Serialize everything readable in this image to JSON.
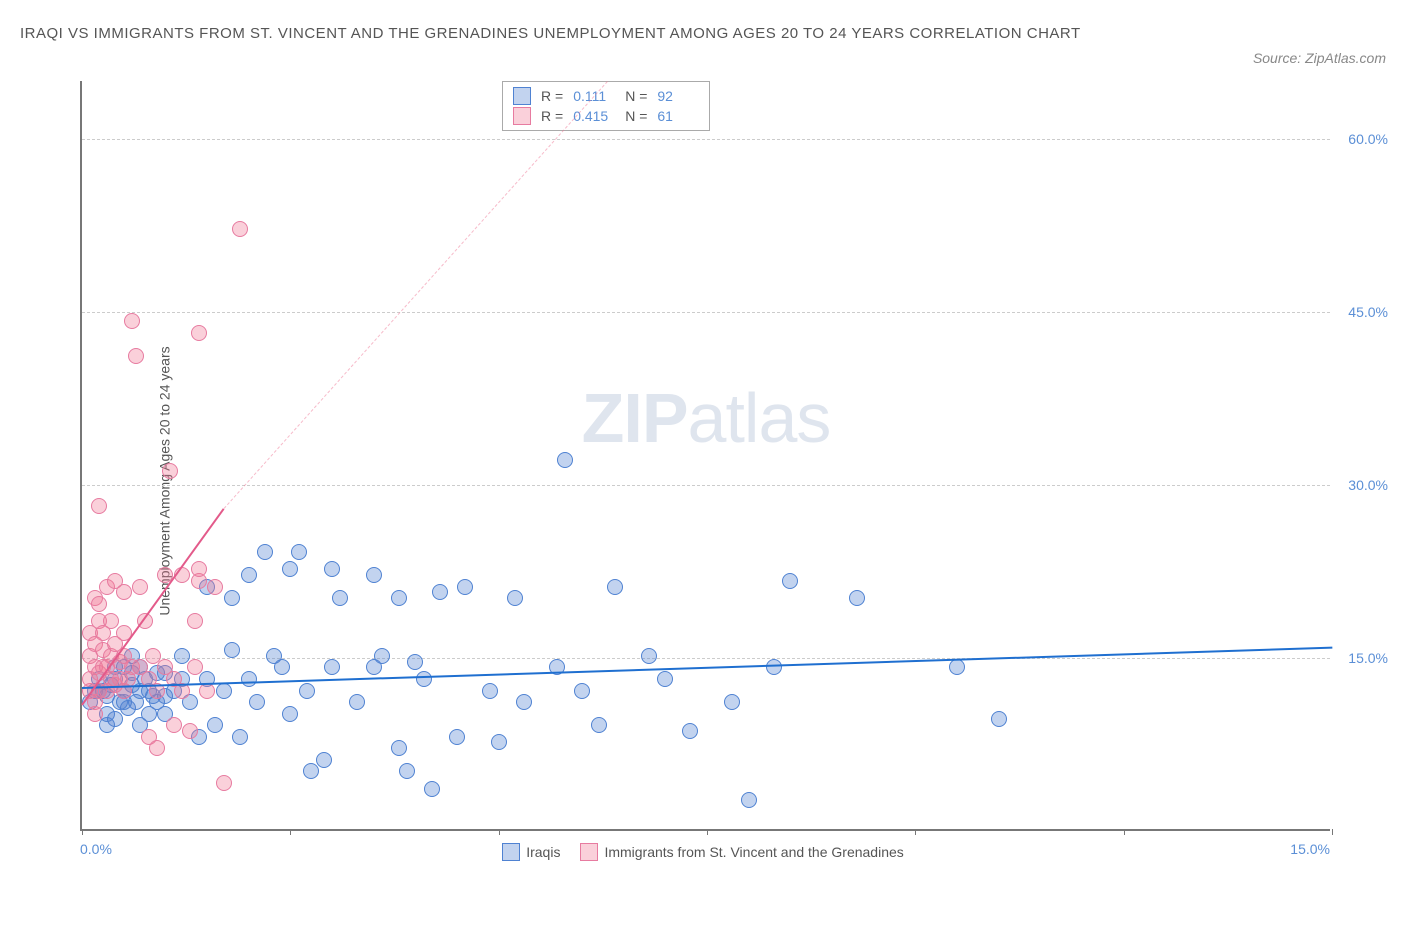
{
  "title": "IRAQI VS IMMIGRANTS FROM ST. VINCENT AND THE GRENADINES UNEMPLOYMENT AMONG AGES 20 TO 24 YEARS CORRELATION CHART",
  "source": "Source: ZipAtlas.com",
  "y_axis_label": "Unemployment Among Ages 20 to 24 years",
  "watermark": {
    "bold": "ZIP",
    "light": "atlas"
  },
  "chart": {
    "type": "scatter",
    "x_min": 0,
    "x_max": 15,
    "y_min": 0,
    "y_max": 65,
    "x_tick_left": "0.0%",
    "x_tick_right": "15.0%",
    "x_tick_marks": [
      0,
      2.5,
      5,
      7.5,
      10,
      12.5,
      15
    ],
    "y_ticks": [
      15,
      30,
      45,
      60
    ],
    "y_tick_labels": [
      "15.0%",
      "30.0%",
      "45.0%",
      "60.0%"
    ],
    "grid_color": "#cccccc",
    "axis_color": "#777777",
    "marker_radius": 8,
    "marker_opacity": 0.5,
    "series": [
      {
        "name": "Iraqis",
        "color_fill": "rgba(80,130,210,0.35)",
        "color_stroke": "#4f82d2",
        "trend_color": "#1f6fd0",
        "trend_dash_color": "rgba(80,130,210,0.5)",
        "R": "0.111",
        "N": "92",
        "trend": {
          "x1": 0,
          "y1": 12.5,
          "x2": 15,
          "y2": 16
        },
        "points": [
          [
            0.1,
            11
          ],
          [
            0.2,
            12
          ],
          [
            0.2,
            13
          ],
          [
            0.3,
            10
          ],
          [
            0.3,
            11.5
          ],
          [
            0.35,
            12.5
          ],
          [
            0.4,
            9.5
          ],
          [
            0.4,
            13
          ],
          [
            0.4,
            14
          ],
          [
            0.5,
            11
          ],
          [
            0.5,
            12
          ],
          [
            0.55,
            10.5
          ],
          [
            0.6,
            12.5
          ],
          [
            0.6,
            13.5
          ],
          [
            0.65,
            11
          ],
          [
            0.7,
            9
          ],
          [
            0.7,
            12
          ],
          [
            0.75,
            13
          ],
          [
            0.8,
            10
          ],
          [
            0.8,
            12
          ],
          [
            0.85,
            11.5
          ],
          [
            0.9,
            13.5
          ],
          [
            1.0,
            10
          ],
          [
            1.0,
            11.5
          ],
          [
            1.1,
            12
          ],
          [
            1.2,
            13
          ],
          [
            1.2,
            15
          ],
          [
            1.3,
            11
          ],
          [
            1.4,
            8
          ],
          [
            1.5,
            13
          ],
          [
            1.5,
            21
          ],
          [
            1.6,
            9
          ],
          [
            1.7,
            12
          ],
          [
            1.8,
            15.5
          ],
          [
            1.9,
            8
          ],
          [
            2.0,
            13
          ],
          [
            2.0,
            22
          ],
          [
            2.1,
            11
          ],
          [
            2.2,
            24
          ],
          [
            2.3,
            15
          ],
          [
            2.4,
            14
          ],
          [
            2.5,
            10
          ],
          [
            2.5,
            22.5
          ],
          [
            2.6,
            24
          ],
          [
            2.7,
            12
          ],
          [
            2.75,
            5
          ],
          [
            3.0,
            14
          ],
          [
            3.0,
            22.5
          ],
          [
            3.1,
            20
          ],
          [
            3.3,
            11
          ],
          [
            3.5,
            22
          ],
          [
            3.5,
            14
          ],
          [
            3.6,
            15
          ],
          [
            3.8,
            20
          ],
          [
            3.8,
            7
          ],
          [
            3.9,
            5
          ],
          [
            4.0,
            14.5
          ],
          [
            4.1,
            13
          ],
          [
            4.3,
            20.5
          ],
          [
            4.5,
            8
          ],
          [
            4.6,
            21
          ],
          [
            4.9,
            12
          ],
          [
            5.0,
            7.5
          ],
          [
            5.2,
            20
          ],
          [
            5.3,
            11
          ],
          [
            5.7,
            14
          ],
          [
            5.8,
            32
          ],
          [
            6.0,
            12
          ],
          [
            6.2,
            9
          ],
          [
            6.4,
            21
          ],
          [
            6.8,
            15
          ],
          [
            7.0,
            13
          ],
          [
            7.3,
            8.5
          ],
          [
            7.8,
            11
          ],
          [
            8.0,
            2.5
          ],
          [
            8.3,
            14
          ],
          [
            8.5,
            21.5
          ],
          [
            9.3,
            20
          ],
          [
            10.5,
            14
          ],
          [
            11.0,
            9.5
          ],
          [
            4.2,
            3.5
          ],
          [
            2.9,
            6
          ],
          [
            1.8,
            20
          ],
          [
            1.0,
            13.5
          ],
          [
            0.9,
            11
          ],
          [
            0.25,
            12
          ],
          [
            0.5,
            14
          ],
          [
            0.3,
            9
          ],
          [
            0.6,
            15
          ],
          [
            0.45,
            11
          ],
          [
            0.7,
            14
          ],
          [
            0.15,
            12
          ]
        ]
      },
      {
        "name": "Immigrants from St. Vincent and the Grenadines",
        "color_fill": "rgba(240,120,150,0.35)",
        "color_stroke": "#e77ba0",
        "trend_color": "#e35a8a",
        "trend_dash_color": "rgba(240,120,150,0.5)",
        "R": "0.415",
        "N": "61",
        "trend": {
          "x1": 0,
          "y1": 11,
          "x2": 1.7,
          "y2": 28
        },
        "trend_dash": {
          "x1": 1.7,
          "y1": 28,
          "x2": 6.3,
          "y2": 65
        },
        "points": [
          [
            0.1,
            12
          ],
          [
            0.1,
            13
          ],
          [
            0.1,
            15
          ],
          [
            0.1,
            17
          ],
          [
            0.15,
            11
          ],
          [
            0.15,
            14
          ],
          [
            0.15,
            16
          ],
          [
            0.15,
            20
          ],
          [
            0.2,
            12
          ],
          [
            0.2,
            13.5
          ],
          [
            0.2,
            18
          ],
          [
            0.2,
            19.5
          ],
          [
            0.2,
            28
          ],
          [
            0.25,
            14
          ],
          [
            0.25,
            15.5
          ],
          [
            0.25,
            17
          ],
          [
            0.3,
            12
          ],
          [
            0.3,
            21
          ],
          [
            0.3,
            14
          ],
          [
            0.35,
            13
          ],
          [
            0.35,
            15
          ],
          [
            0.35,
            18
          ],
          [
            0.4,
            12.5
          ],
          [
            0.4,
            16
          ],
          [
            0.4,
            21.5
          ],
          [
            0.45,
            13
          ],
          [
            0.45,
            14.5
          ],
          [
            0.5,
            12
          ],
          [
            0.5,
            15
          ],
          [
            0.5,
            17
          ],
          [
            0.5,
            20.5
          ],
          [
            0.55,
            13
          ],
          [
            0.6,
            14
          ],
          [
            0.6,
            44
          ],
          [
            0.65,
            41
          ],
          [
            0.7,
            14
          ],
          [
            0.7,
            21
          ],
          [
            0.75,
            18
          ],
          [
            0.8,
            13
          ],
          [
            0.8,
            8
          ],
          [
            0.85,
            15
          ],
          [
            0.9,
            7
          ],
          [
            0.9,
            12
          ],
          [
            1.0,
            22
          ],
          [
            1.0,
            14
          ],
          [
            1.05,
            31
          ],
          [
            1.1,
            9
          ],
          [
            1.1,
            13
          ],
          [
            1.2,
            12
          ],
          [
            1.2,
            22
          ],
          [
            1.3,
            8.5
          ],
          [
            1.35,
            14
          ],
          [
            1.35,
            18
          ],
          [
            1.4,
            21.5
          ],
          [
            1.4,
            22.5
          ],
          [
            1.4,
            43
          ],
          [
            1.5,
            12
          ],
          [
            1.6,
            21
          ],
          [
            1.7,
            4
          ],
          [
            1.9,
            52
          ],
          [
            0.15,
            10
          ]
        ]
      }
    ]
  },
  "legend": {
    "item1": "Iraqis",
    "item2": "Immigrants from St. Vincent and the Grenadines"
  },
  "stats_labels": {
    "R": "R =",
    "N": "N ="
  }
}
